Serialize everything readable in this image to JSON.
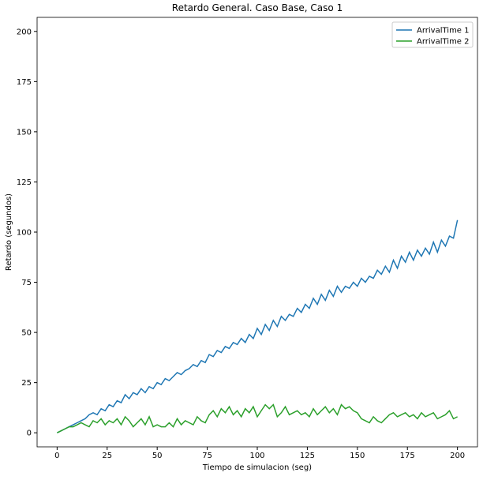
{
  "chart_data": {
    "type": "line",
    "title": "Retardo General. Caso Base, Caso 1",
    "xlabel": "Tiempo de simulacion (seg)",
    "ylabel": "Retardo (segundos)",
    "x": [
      0,
      2,
      4,
      6,
      8,
      10,
      12,
      14,
      16,
      18,
      20,
      22,
      24,
      26,
      28,
      30,
      32,
      34,
      36,
      38,
      40,
      42,
      44,
      46,
      48,
      50,
      52,
      54,
      56,
      58,
      60,
      62,
      64,
      66,
      68,
      70,
      72,
      74,
      76,
      78,
      80,
      82,
      84,
      86,
      88,
      90,
      92,
      94,
      96,
      98,
      100,
      102,
      104,
      106,
      108,
      110,
      112,
      114,
      116,
      118,
      120,
      122,
      124,
      126,
      128,
      130,
      132,
      134,
      136,
      138,
      140,
      142,
      144,
      146,
      148,
      150,
      152,
      154,
      156,
      158,
      160,
      162,
      164,
      166,
      168,
      170,
      172,
      174,
      176,
      178,
      180,
      182,
      184,
      186,
      188,
      190,
      192,
      194,
      196,
      198,
      200
    ],
    "series": [
      {
        "name": "ArrivalTime 1",
        "color": "#1f77b4",
        "values": [
          0,
          1,
          2,
          3,
          4,
          5,
          6,
          7,
          9,
          10,
          9,
          12,
          11,
          14,
          13,
          16,
          15,
          19,
          17,
          20,
          19,
          22,
          20,
          23,
          22,
          25,
          24,
          27,
          26,
          28,
          30,
          29,
          31,
          32,
          34,
          33,
          36,
          35,
          39,
          38,
          41,
          40,
          43,
          42,
          45,
          44,
          47,
          45,
          49,
          47,
          52,
          49,
          54,
          51,
          56,
          53,
          58,
          56,
          59,
          58,
          62,
          60,
          64,
          62,
          67,
          64,
          69,
          66,
          71,
          68,
          73,
          70,
          73,
          72,
          75,
          73,
          77,
          75,
          78,
          77,
          81,
          79,
          83,
          80,
          86,
          82,
          88,
          85,
          90,
          86,
          91,
          88,
          92,
          89,
          95,
          90,
          96,
          93,
          98,
          97,
          106
        ]
      },
      {
        "name": "ArrivalTime 2",
        "color": "#2ca02c",
        "values": [
          0,
          1,
          2,
          3,
          3,
          4,
          5,
          4,
          3,
          6,
          5,
          7,
          4,
          6,
          5,
          7,
          4,
          8,
          6,
          3,
          5,
          7,
          4,
          8,
          3,
          4,
          3,
          3,
          5,
          3,
          7,
          4,
          6,
          5,
          4,
          8,
          6,
          5,
          9,
          11,
          8,
          12,
          10,
          13,
          9,
          11,
          8,
          12,
          10,
          13,
          8,
          11,
          14,
          12,
          14,
          8,
          10,
          13,
          9,
          10,
          11,
          9,
          10,
          8,
          12,
          9,
          11,
          13,
          10,
          12,
          9,
          14,
          12,
          13,
          11,
          10,
          7,
          6,
          5,
          8,
          6,
          5,
          7,
          9,
          10,
          8,
          9,
          10,
          8,
          9,
          7,
          10,
          8,
          9,
          10,
          7,
          8,
          9,
          11,
          7,
          8
        ]
      }
    ],
    "xlim": [
      -10,
      210
    ],
    "xticks": [
      0,
      25,
      50,
      75,
      100,
      125,
      150,
      175,
      200
    ],
    "ylim": [
      -7,
      207
    ],
    "yticks": [
      0,
      25,
      50,
      75,
      100,
      125,
      150,
      175,
      200
    ],
    "legend": "upper right"
  }
}
